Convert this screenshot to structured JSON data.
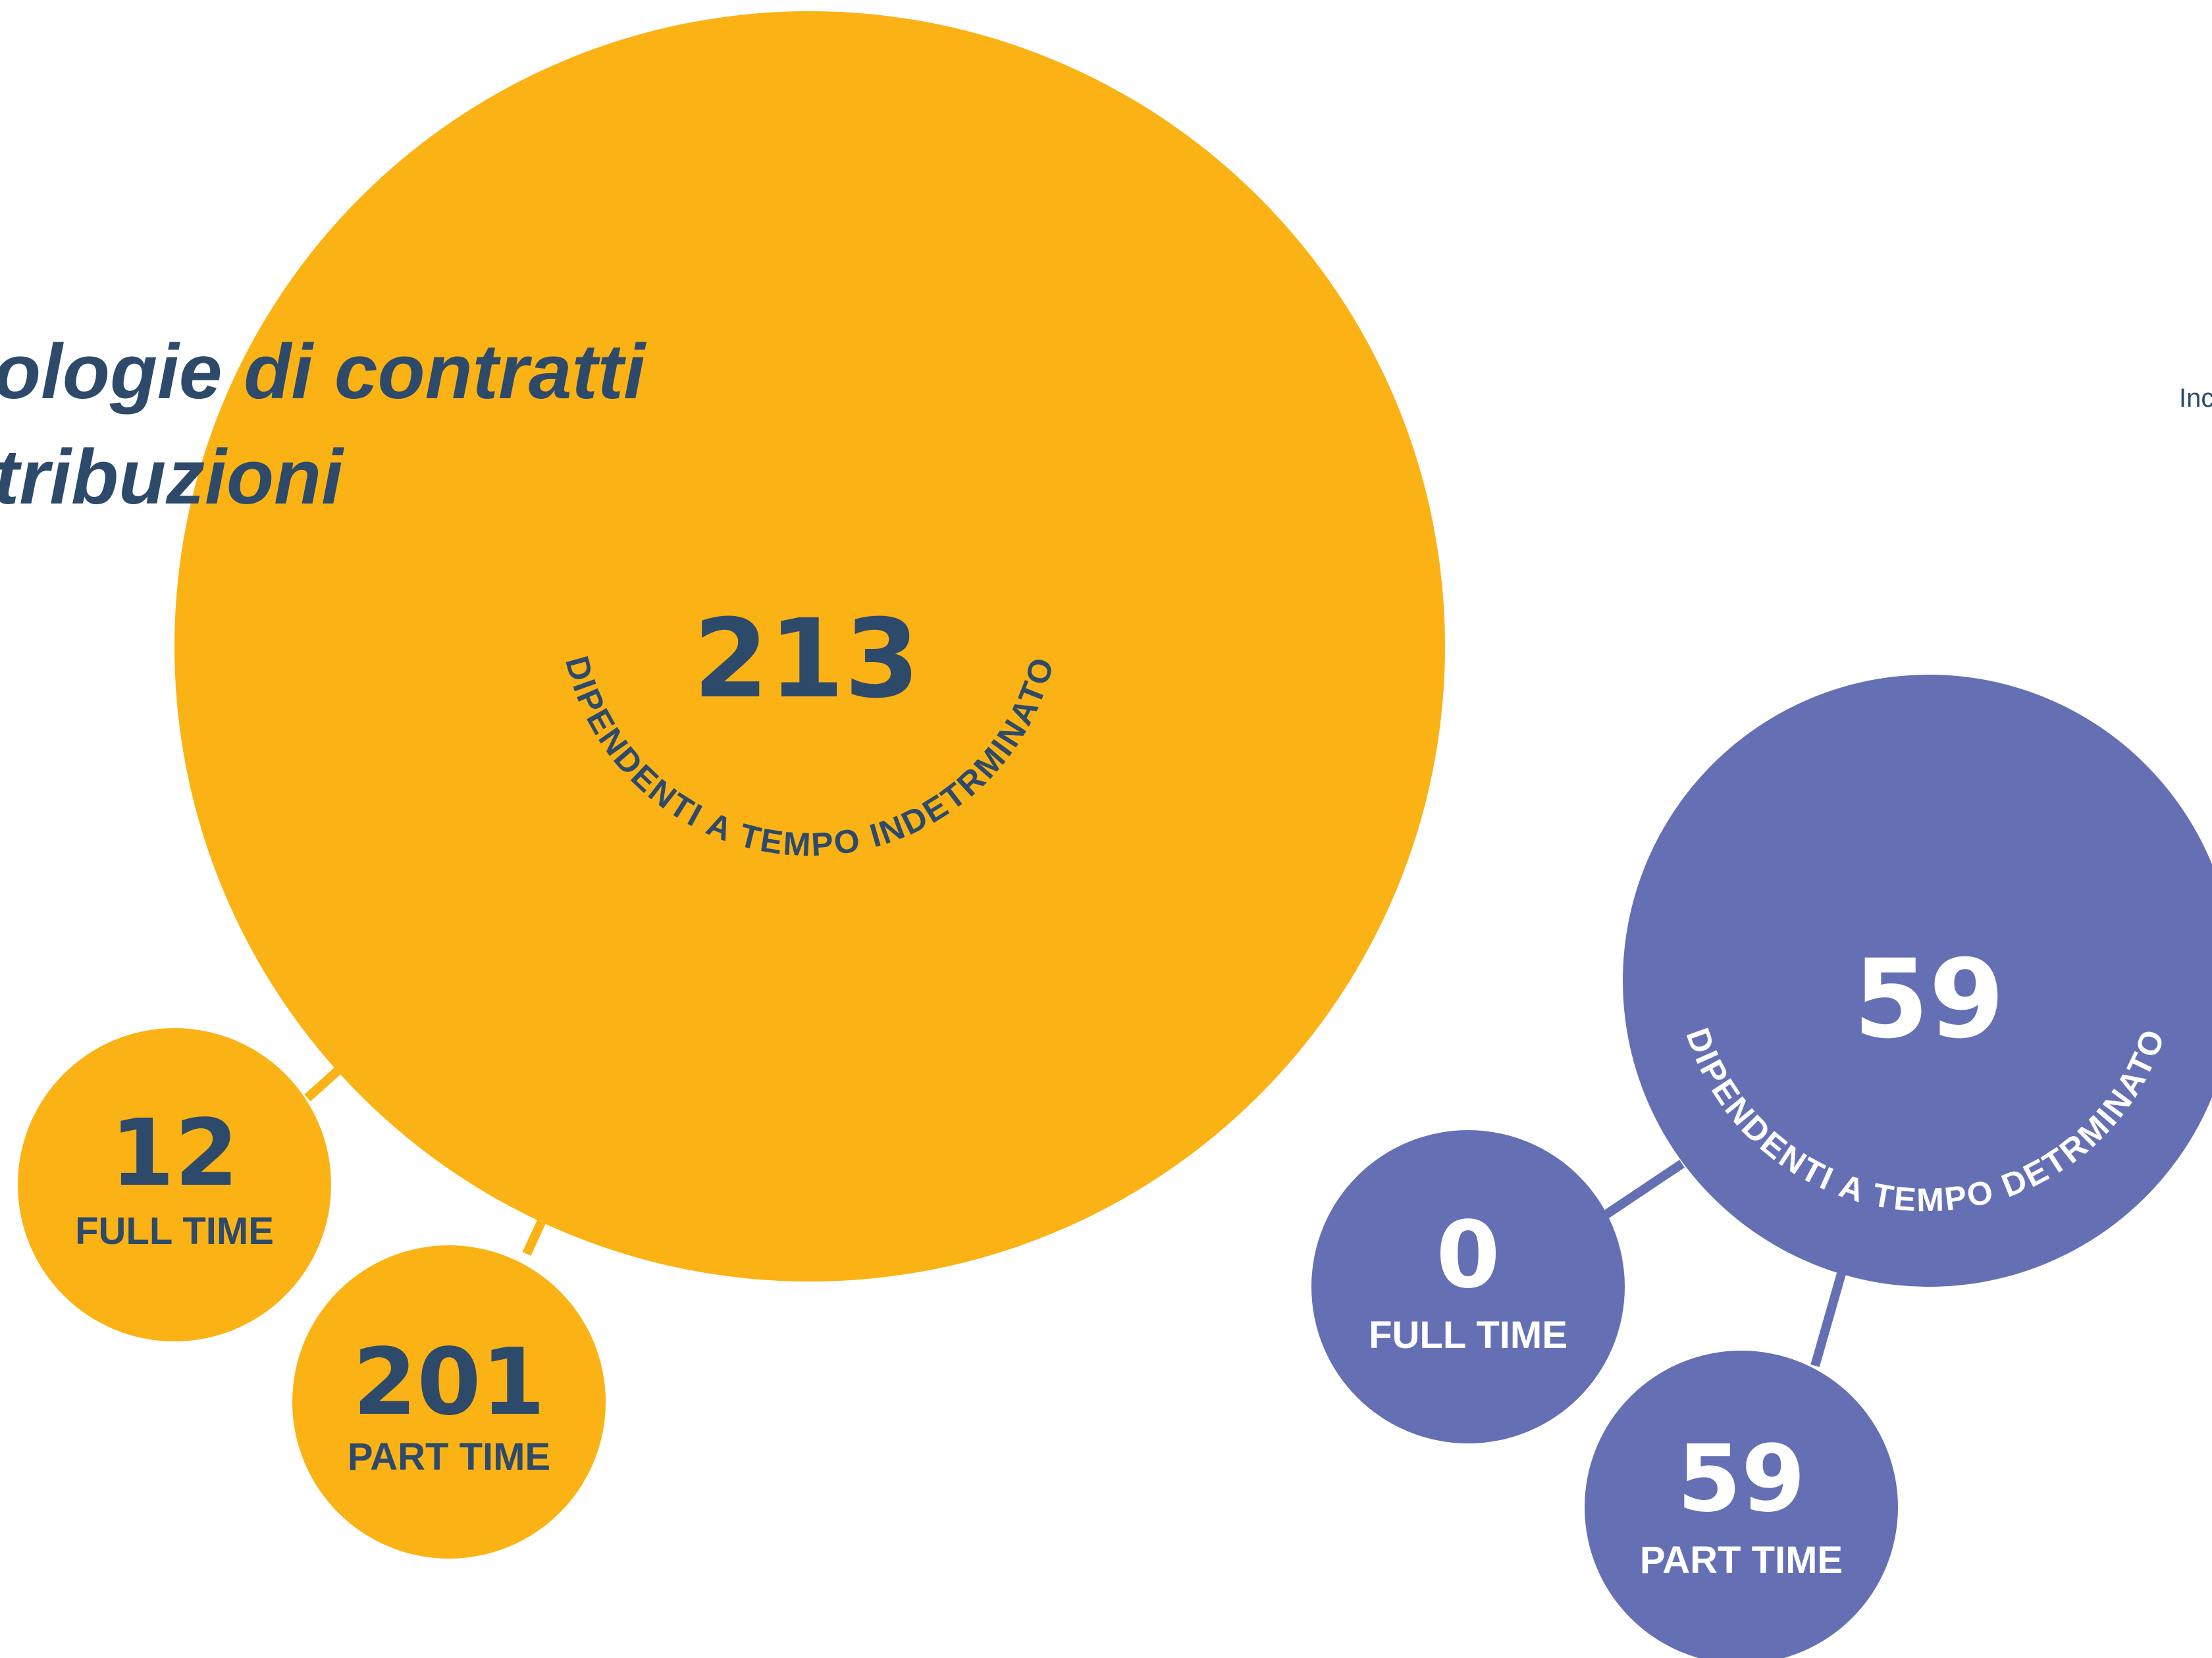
{
  "title": {
    "line1": "ologie di contratti",
    "line2": "tribuzioni"
  },
  "side_label": "Inc",
  "colors": {
    "yellow": "#FBB215",
    "purple": "#6570B4",
    "navy": "#2D4A6B",
    "white": "#FFFFFF"
  },
  "indeterminato": {
    "total": "213",
    "arc_label": "DIPENDENTI A TEMPO INDETRMINATO",
    "full_time": {
      "value": "12",
      "label": "FULL TIME"
    },
    "part_time": {
      "value": "201",
      "label": "PART TIME"
    }
  },
  "determinato": {
    "total": "59",
    "arc_label": "DIPENDENTI A TEMPO DETRMINATO",
    "full_time": {
      "value": "0",
      "label": "FULL TIME"
    },
    "part_time": {
      "value": "59",
      "label": "PART TIME"
    }
  }
}
